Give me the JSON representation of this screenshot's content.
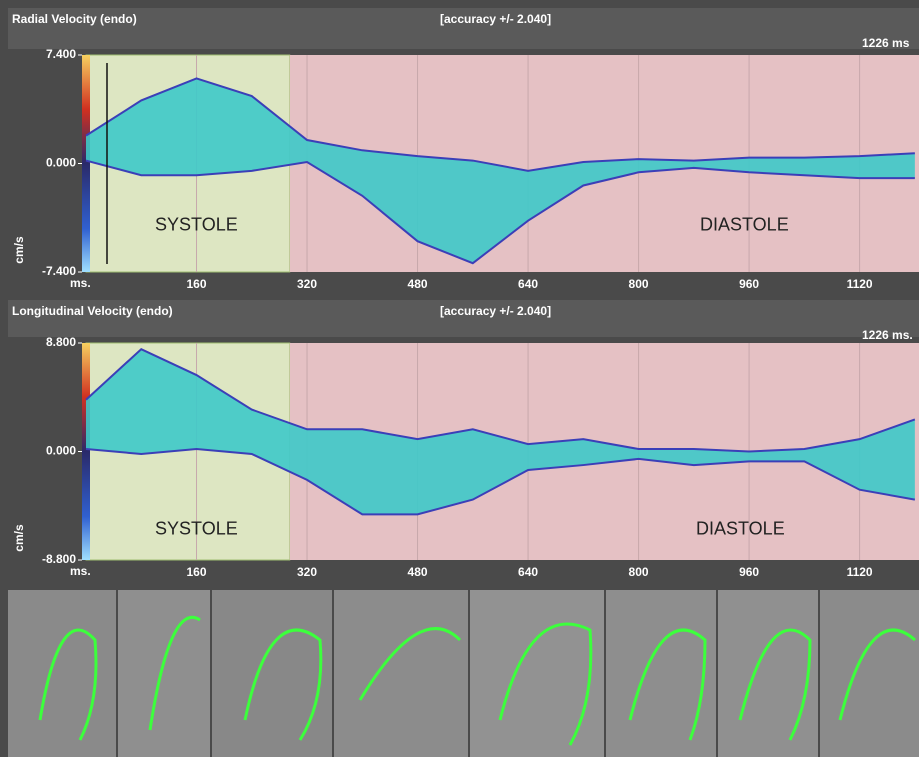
{
  "chart_data": [
    {
      "type": "line",
      "title": "Radial Velocity (endo)",
      "annotation": "[accuracy +/- 2.040]",
      "duration_label": "1226 ms",
      "ylabel": "cm/s",
      "x_unit": "ms.",
      "xlim": [
        0,
        1206
      ],
      "xticks": [
        160,
        320,
        480,
        640,
        800,
        960,
        1120
      ],
      "ylim": [
        -7.4,
        7.4
      ],
      "yticks": [
        {
          "value": 7.4,
          "label": "7.400"
        },
        {
          "value": 0,
          "label": "0.000"
        },
        {
          "value": -7.4,
          "label": "-7.400"
        }
      ],
      "grid": true,
      "band_color": "#3ec9c9",
      "phases": [
        {
          "label": "SYSTOLE",
          "start": 0,
          "end": 295,
          "color": "#dde6c2"
        },
        {
          "label": "DIASTOLE",
          "start": 295,
          "end": 1206,
          "color": "#e5c1c4"
        }
      ],
      "x": [
        0,
        80,
        160,
        240,
        320,
        400,
        480,
        560,
        640,
        720,
        800,
        880,
        960,
        1040,
        1120,
        1200
      ],
      "series": [
        {
          "color": "#3b3fb8",
          "values": [
            1.9,
            4.3,
            5.8,
            4.6,
            1.6,
            0.9,
            0.5,
            0.2,
            -0.5,
            0.1,
            0.3,
            0.2,
            0.4,
            0.4,
            0.5,
            0.7
          ]
        },
        {
          "color": "#3b3fb8",
          "values": [
            0.2,
            -0.8,
            -0.8,
            -0.5,
            0.1,
            -2.2,
            -5.3,
            -6.8,
            -3.9,
            -1.5,
            -0.6,
            -0.3,
            -0.6,
            -0.8,
            -1.0,
            -1.0
          ]
        }
      ]
    },
    {
      "type": "line",
      "title": "Longitudinal Velocity (endo)",
      "annotation": "[accuracy +/- 2.040]",
      "duration_label": "1226 ms.",
      "ylabel": "cm/s",
      "x_unit": "ms.",
      "xlim": [
        0,
        1206
      ],
      "xticks": [
        160,
        320,
        480,
        640,
        800,
        960,
        1120
      ],
      "ylim": [
        -8.8,
        8.8
      ],
      "yticks": [
        {
          "value": 8.8,
          "label": "8.800"
        },
        {
          "value": 0,
          "label": "0.000"
        },
        {
          "value": -8.8,
          "label": "-8.800"
        }
      ],
      "grid": true,
      "band_color": "#3ec9c9",
      "phases": [
        {
          "label": "SYSTOLE",
          "start": 0,
          "end": 295,
          "color": "#dde6c2"
        },
        {
          "label": "DIASTOLE",
          "start": 295,
          "end": 1206,
          "color": "#e5c1c4"
        }
      ],
      "x": [
        0,
        80,
        160,
        240,
        320,
        400,
        480,
        560,
        640,
        720,
        800,
        880,
        960,
        1040,
        1120,
        1200
      ],
      "series": [
        {
          "color": "#3b3fb8",
          "values": [
            4.2,
            8.3,
            6.2,
            3.4,
            1.8,
            1.8,
            1.0,
            1.8,
            0.6,
            1.0,
            0.2,
            0.2,
            0,
            0.2,
            1.0,
            2.6
          ]
        },
        {
          "color": "#3b3fb8",
          "values": [
            0.2,
            -0.2,
            0.2,
            -0.2,
            -2.3,
            -5.1,
            -5.1,
            -3.9,
            -1.5,
            -1.1,
            -0.6,
            -1.1,
            -0.8,
            -0.8,
            -3.1,
            -3.9
          ]
        }
      ]
    }
  ]
}
